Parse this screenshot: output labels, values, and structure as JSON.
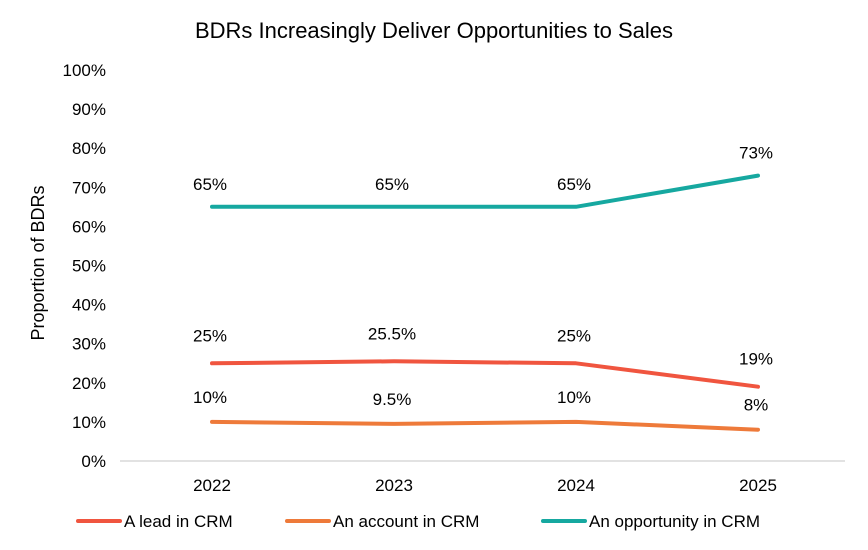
{
  "chart_data": {
    "type": "line",
    "title": "BDRs Increasingly Deliver Opportunities to Sales",
    "xlabel": "",
    "ylabel": "Proportion of BDRs",
    "categories": [
      "2022",
      "2023",
      "2024",
      "2025"
    ],
    "ylim": [
      0,
      100
    ],
    "yticks": [
      "0%",
      "10%",
      "20%",
      "30%",
      "40%",
      "50%",
      "60%",
      "70%",
      "80%",
      "90%",
      "100%"
    ],
    "grid": false,
    "legend_position": "bottom",
    "series": [
      {
        "name": "A lead in CRM",
        "color": "#f0553f",
        "values": [
          25,
          25.5,
          25,
          19
        ],
        "labels": [
          "25%",
          "25.5%",
          "25%",
          "19%"
        ]
      },
      {
        "name": "An account in CRM",
        "color": "#ee7a3a",
        "values": [
          10,
          9.5,
          10,
          8
        ],
        "labels": [
          "10%",
          "9.5%",
          "10%",
          "8%"
        ]
      },
      {
        "name": "An opportunity in CRM",
        "color": "#16a8a0",
        "values": [
          65,
          65,
          65,
          73
        ],
        "labels": [
          "65%",
          "65%",
          "65%",
          "73%"
        ]
      }
    ]
  }
}
